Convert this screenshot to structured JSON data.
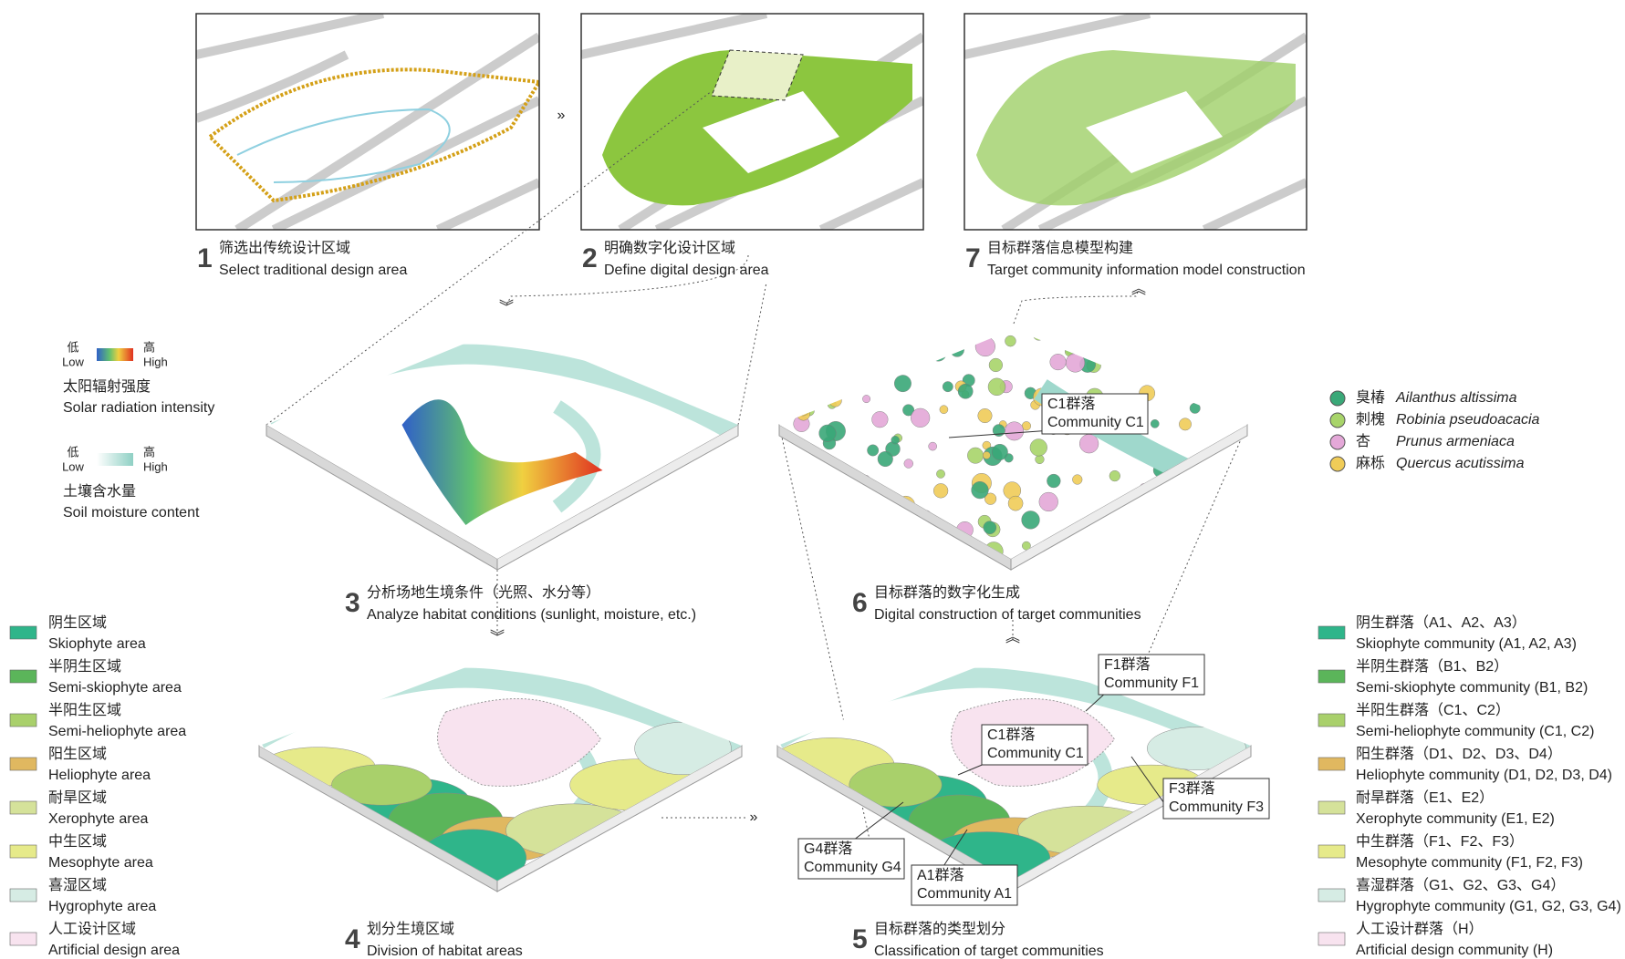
{
  "steps": [
    {
      "number": "1",
      "zh": "筛选出传统设计区域",
      "en": "Select traditional design area"
    },
    {
      "number": "2",
      "zh": "明确数字化设计区域",
      "en": "Define digital design area"
    },
    {
      "number": "7",
      "zh": "目标群落信息模型构建",
      "en": "Target community information model construction"
    },
    {
      "number": "3",
      "zh": "分析场地生境条件（光照、水分等）",
      "en": "Analyze habitat conditions (sunlight, moisture, etc.)"
    },
    {
      "number": "6",
      "zh": "目标群落的数字化生成",
      "en": "Digital construction of target communities"
    },
    {
      "number": "4",
      "zh": "划分生境区域",
      "en": "Division of habitat areas"
    },
    {
      "number": "5",
      "zh": "目标群落的类型划分",
      "en": "Classification of target communities"
    }
  ],
  "gradient_legends": [
    {
      "low_zh": "低",
      "low_en": "Low",
      "high_zh": "高",
      "high_en": "High",
      "title_zh": "太阳辐射强度",
      "title_en": "Solar radiation intensity"
    },
    {
      "low_zh": "低",
      "low_en": "Low",
      "high_zh": "高",
      "high_en": "High",
      "title_zh": "土壤含水量",
      "title_en": "Soil moisture content"
    }
  ],
  "habitat_legend": [
    {
      "zh": "阴生区域",
      "en": "Skiophyte area",
      "color": "#2fb58a"
    },
    {
      "zh": "半阴生区域",
      "en": "Semi-skiophyte area",
      "color": "#5bb55a"
    },
    {
      "zh": "半阳生区域",
      "en": "Semi-heliophyte area",
      "color": "#a9d06b"
    },
    {
      "zh": "阳生区域",
      "en": "Heliophyte area",
      "color": "#e0b860"
    },
    {
      "zh": "耐旱区域",
      "en": "Xerophyte area",
      "color": "#d5e29a"
    },
    {
      "zh": "中生区域",
      "en": "Mesophyte area",
      "color": "#e6ea8a"
    },
    {
      "zh": "喜湿区域",
      "en": "Hygrophyte area",
      "color": "#d6ece4"
    },
    {
      "zh": "人工设计区域",
      "en": "Artificial design area",
      "color": "#f8e3ef"
    }
  ],
  "community_legend": [
    {
      "zh": "阴生群落（A1、A2、A3）",
      "en": "Skiophyte community (A1, A2, A3)",
      "color": "#2fb58a"
    },
    {
      "zh": "半阴生群落（B1、B2）",
      "en": "Semi-skiophyte community (B1, B2)",
      "color": "#5bb55a"
    },
    {
      "zh": "半阳生群落（C1、C2）",
      "en": "Semi-heliophyte community (C1, C2)",
      "color": "#a9d06b"
    },
    {
      "zh": "阳生群落（D1、D2、D3、D4）",
      "en": "Heliophyte community (D1, D2, D3, D4)",
      "color": "#e0b860"
    },
    {
      "zh": "耐旱群落（E1、E2）",
      "en": "Xerophyte community (E1, E2)",
      "color": "#d5e29a"
    },
    {
      "zh": "中生群落（F1、F2、F3）",
      "en": "Mesophyte community (F1, F2, F3)",
      "color": "#e6ea8a"
    },
    {
      "zh": "喜湿群落（G1、G2、G3、G4）",
      "en": "Hygrophyte community (G1, G2, G3, G4)",
      "color": "#d6ece4"
    },
    {
      "zh": "人工设计群落（H）",
      "en": "Artificial design community (H)",
      "color": "#f8e3ef"
    }
  ],
  "species_legend": [
    {
      "zh": "臭椿",
      "latin": "Ailanthus altissima",
      "color": "#3aa878"
    },
    {
      "zh": "刺槐",
      "latin": "Robinia pseudoacacia",
      "color": "#a8d46a"
    },
    {
      "zh": "杏",
      "latin": "Prunus armeniaca",
      "color": "#e4a8d8"
    },
    {
      "zh": "麻栎",
      "latin": "Quercus acutissima",
      "color": "#f0cc58"
    }
  ],
  "callouts": [
    {
      "zh": "C1群落",
      "en": "Community C1"
    },
    {
      "zh": "F1群落",
      "en": "Community F1"
    },
    {
      "zh": "C1群落",
      "en": "Community C1"
    },
    {
      "zh": "F3群落",
      "en": "Community F3"
    },
    {
      "zh": "G4群落",
      "en": "Community G4"
    },
    {
      "zh": "A1群落",
      "en": "Community A1"
    }
  ]
}
